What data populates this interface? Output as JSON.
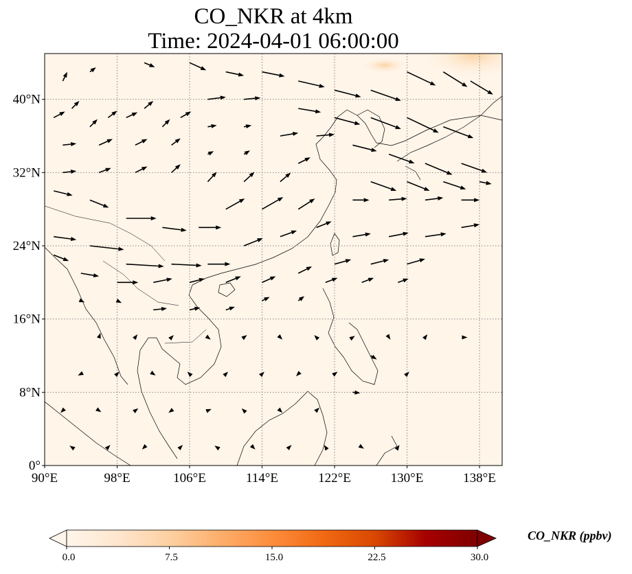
{
  "title_line1": "CO_NKR at 4km",
  "title_line2": "Time: 2024-04-01 06:00:00",
  "map": {
    "lon_range": [
      90,
      140.5
    ],
    "lat_range": [
      0,
      45
    ],
    "lon_ticks": [
      {
        "value": 90,
        "label": "90°E"
      },
      {
        "value": 98,
        "label": "98°E"
      },
      {
        "value": 106,
        "label": "106°E"
      },
      {
        "value": 114,
        "label": "114°E"
      },
      {
        "value": 122,
        "label": "122°E"
      },
      {
        "value": 130,
        "label": "130°E"
      },
      {
        "value": 138,
        "label": "138°E"
      }
    ],
    "lat_ticks": [
      {
        "value": 0,
        "label": "0°"
      },
      {
        "value": 8,
        "label": "8°N"
      },
      {
        "value": 16,
        "label": "16°N"
      },
      {
        "value": 24,
        "label": "24°N"
      },
      {
        "value": 32,
        "label": "32°N"
      },
      {
        "value": 40,
        "label": "40°N"
      }
    ],
    "gridlines": "dotted",
    "field_background": "#fff5e9",
    "field_high_color": "#fdd9ac",
    "coastline_color": "#000000",
    "wind_vectors": [
      {
        "lon": 91,
        "lat": 38,
        "u": 1.5,
        "v": 0.8
      },
      {
        "lon": 93,
        "lat": 39,
        "u": 1.0,
        "v": 1.0
      },
      {
        "lon": 95,
        "lat": 37,
        "u": 1.0,
        "v": 1.0
      },
      {
        "lon": 97,
        "lat": 38,
        "u": 1.2,
        "v": 0.9
      },
      {
        "lon": 99,
        "lat": 38,
        "u": 1.5,
        "v": 0.7
      },
      {
        "lon": 101,
        "lat": 39,
        "u": 1.2,
        "v": 1.0
      },
      {
        "lon": 103,
        "lat": 37,
        "u": 1.0,
        "v": 1.0
      },
      {
        "lon": 105,
        "lat": 38,
        "u": 1.4,
        "v": 0.8
      },
      {
        "lon": 92,
        "lat": 35,
        "u": 1.8,
        "v": 0.2
      },
      {
        "lon": 96,
        "lat": 35,
        "u": 1.8,
        "v": 0.8
      },
      {
        "lon": 100,
        "lat": 35,
        "u": 1.6,
        "v": 0.8
      },
      {
        "lon": 104,
        "lat": 35,
        "u": 1.2,
        "v": 0.9
      },
      {
        "lon": 92,
        "lat": 32,
        "u": 1.8,
        "v": 0.2
      },
      {
        "lon": 96,
        "lat": 32,
        "u": 1.6,
        "v": 0.6
      },
      {
        "lon": 100,
        "lat": 32,
        "u": 1.6,
        "v": 0.8
      },
      {
        "lon": 104,
        "lat": 32,
        "u": 1.2,
        "v": 1.1
      },
      {
        "lon": 108,
        "lat": 31,
        "u": 1.2,
        "v": 1.3
      },
      {
        "lon": 112,
        "lat": 31,
        "u": 1.4,
        "v": 1.3
      },
      {
        "lon": 116,
        "lat": 31,
        "u": 1.4,
        "v": 1.2
      },
      {
        "lon": 91,
        "lat": 30,
        "u": 2.5,
        "v": -0.6
      },
      {
        "lon": 95,
        "lat": 29,
        "u": 2.5,
        "v": -1.0
      },
      {
        "lon": 99,
        "lat": 27,
        "u": 4.0,
        "v": 0.0
      },
      {
        "lon": 103,
        "lat": 26,
        "u": 3.2,
        "v": -0.4
      },
      {
        "lon": 107,
        "lat": 26,
        "u": 3.0,
        "v": 0.0
      },
      {
        "lon": 110,
        "lat": 28,
        "u": 2.5,
        "v": 1.4
      },
      {
        "lon": 114,
        "lat": 28,
        "u": 2.8,
        "v": 1.6
      },
      {
        "lon": 118,
        "lat": 28,
        "u": 2.2,
        "v": 1.4
      },
      {
        "lon": 91,
        "lat": 25,
        "u": 3.0,
        "v": -0.4
      },
      {
        "lon": 95,
        "lat": 24,
        "u": 4.5,
        "v": -0.5
      },
      {
        "lon": 99,
        "lat": 22,
        "u": 5.0,
        "v": -0.3
      },
      {
        "lon": 104,
        "lat": 22,
        "u": 4.0,
        "v": -0.2
      },
      {
        "lon": 108,
        "lat": 22,
        "u": 3.0,
        "v": 0.0
      },
      {
        "lon": 112,
        "lat": 24,
        "u": 2.5,
        "v": 1.0
      },
      {
        "lon": 116,
        "lat": 25,
        "u": 2.2,
        "v": 0.8
      },
      {
        "lon": 120,
        "lat": 26,
        "u": 2.0,
        "v": 0.8
      },
      {
        "lon": 91,
        "lat": 23,
        "u": 2.0,
        "v": -0.8
      },
      {
        "lon": 94,
        "lat": 21,
        "u": 2.4,
        "v": -0.4
      },
      {
        "lon": 98,
        "lat": 20,
        "u": 2.8,
        "v": 0.0
      },
      {
        "lon": 102,
        "lat": 20,
        "u": 2.5,
        "v": 0.5
      },
      {
        "lon": 106,
        "lat": 20,
        "u": 2.0,
        "v": 0.5
      },
      {
        "lon": 110,
        "lat": 20,
        "u": 2.0,
        "v": 0.8
      },
      {
        "lon": 114,
        "lat": 20,
        "u": 1.8,
        "v": 0.8
      },
      {
        "lon": 118,
        "lat": 21,
        "u": 1.8,
        "v": 0.9
      },
      {
        "lon": 124,
        "lat": 29,
        "u": 2.2,
        "v": 0.0
      },
      {
        "lon": 128,
        "lat": 29,
        "u": 2.4,
        "v": 0.2
      },
      {
        "lon": 132,
        "lat": 29,
        "u": 2.4,
        "v": 0.3
      },
      {
        "lon": 136,
        "lat": 29,
        "u": 2.4,
        "v": 0.0
      },
      {
        "lon": 124,
        "lat": 25,
        "u": 2.4,
        "v": 0.4
      },
      {
        "lon": 128,
        "lat": 25,
        "u": 2.6,
        "v": 0.5
      },
      {
        "lon": 132,
        "lat": 25,
        "u": 2.8,
        "v": 0.4
      },
      {
        "lon": 136,
        "lat": 26,
        "u": 2.4,
        "v": 0.4
      },
      {
        "lon": 122,
        "lat": 22,
        "u": 2.2,
        "v": 0.6
      },
      {
        "lon": 126,
        "lat": 22,
        "u": 2.4,
        "v": 0.6
      },
      {
        "lon": 130,
        "lat": 22,
        "u": 2.4,
        "v": 0.7
      },
      {
        "lon": 121,
        "lat": 20,
        "u": 1.6,
        "v": 0.6
      },
      {
        "lon": 125,
        "lat": 20,
        "u": 1.6,
        "v": 0.6
      },
      {
        "lon": 129,
        "lat": 20,
        "u": 1.4,
        "v": 0.5
      },
      {
        "lon": 92,
        "lat": 42,
        "u": 0.6,
        "v": 1.2
      },
      {
        "lon": 95,
        "lat": 43,
        "u": 0.8,
        "v": 0.6
      },
      {
        "lon": 101,
        "lat": 44,
        "u": 1.4,
        "v": -0.6
      },
      {
        "lon": 106,
        "lat": 44,
        "u": 2.2,
        "v": -1.0
      },
      {
        "lon": 110,
        "lat": 43,
        "u": 2.4,
        "v": -0.5
      },
      {
        "lon": 114,
        "lat": 43,
        "u": 3.0,
        "v": -0.6
      },
      {
        "lon": 118,
        "lat": 42,
        "u": 3.5,
        "v": -0.8
      },
      {
        "lon": 122,
        "lat": 41,
        "u": 3.5,
        "v": -0.9
      },
      {
        "lon": 126,
        "lat": 41,
        "u": 4.0,
        "v": -1.4
      },
      {
        "lon": 130,
        "lat": 43,
        "u": 3.8,
        "v": -1.8
      },
      {
        "lon": 134,
        "lat": 43,
        "u": 3.2,
        "v": -2.0
      },
      {
        "lon": 137,
        "lat": 42,
        "u": 3.0,
        "v": -1.8
      },
      {
        "lon": 118,
        "lat": 39,
        "u": 3.0,
        "v": -0.5
      },
      {
        "lon": 122,
        "lat": 38,
        "u": 3.4,
        "v": -0.9
      },
      {
        "lon": 126,
        "lat": 38,
        "u": 4.0,
        "v": -1.5
      },
      {
        "lon": 130,
        "lat": 38,
        "u": 4.2,
        "v": -2.0
      },
      {
        "lon": 134,
        "lat": 37,
        "u": 4.0,
        "v": -1.5
      },
      {
        "lon": 108,
        "lat": 40,
        "u": 2.4,
        "v": 0.3
      },
      {
        "lon": 112,
        "lat": 40,
        "u": 2.2,
        "v": 0.2
      },
      {
        "lon": 116,
        "lat": 36,
        "u": 2.4,
        "v": 0.4
      },
      {
        "lon": 120,
        "lat": 36,
        "u": 2.4,
        "v": 0.2
      },
      {
        "lon": 124,
        "lat": 35,
        "u": 3.2,
        "v": -0.8
      },
      {
        "lon": 128,
        "lat": 34,
        "u": 3.4,
        "v": -1.2
      },
      {
        "lon": 132,
        "lat": 33,
        "u": 3.6,
        "v": -1.5
      },
      {
        "lon": 136,
        "lat": 33,
        "u": 3.4,
        "v": -1.2
      },
      {
        "lon": 126,
        "lat": 31,
        "u": 3.4,
        "v": -1.2
      },
      {
        "lon": 130,
        "lat": 31,
        "u": 3.0,
        "v": -1.2
      },
      {
        "lon": 134,
        "lat": 31,
        "u": 3.0,
        "v": -1.0
      },
      {
        "lon": 138,
        "lat": 31,
        "u": 1.6,
        "v": -0.3
      },
      {
        "lon": 108,
        "lat": 37,
        "u": 1.2,
        "v": 0.2
      },
      {
        "lon": 112,
        "lat": 37,
        "u": 1.0,
        "v": 0.2
      },
      {
        "lon": 108,
        "lat": 34,
        "u": 0.8,
        "v": 0.4
      },
      {
        "lon": 112,
        "lat": 34,
        "u": 0.8,
        "v": 0.5
      },
      {
        "lon": 118,
        "lat": 33,
        "u": 1.6,
        "v": 0.8
      },
      {
        "lon": 94,
        "lat": 18,
        "u": 0.5,
        "v": -0.2
      },
      {
        "lon": 98,
        "lat": 18,
        "u": 0.6,
        "v": -0.3
      },
      {
        "lon": 102,
        "lat": 17,
        "u": 1.8,
        "v": 0.2
      },
      {
        "lon": 106,
        "lat": 17,
        "u": 1.4,
        "v": 0.3
      },
      {
        "lon": 110,
        "lat": 17,
        "u": 1.2,
        "v": 0.4
      },
      {
        "lon": 114,
        "lat": 18,
        "u": 1.0,
        "v": 0.5
      },
      {
        "lon": 118,
        "lat": 18,
        "u": 0.8,
        "v": 0.6
      },
      {
        "lon": 96,
        "lat": 14,
        "u": 0.2,
        "v": 0.6
      },
      {
        "lon": 100,
        "lat": 14,
        "u": 0.3,
        "v": 0.4
      },
      {
        "lon": 104,
        "lat": 14,
        "u": 0.3,
        "v": 0.3
      },
      {
        "lon": 108,
        "lat": 14,
        "u": 0.4,
        "v": -0.3
      },
      {
        "lon": 112,
        "lat": 14,
        "u": 0.4,
        "v": 0.3
      },
      {
        "lon": 116,
        "lat": 14,
        "u": 0.3,
        "v": -0.3
      },
      {
        "lon": 120,
        "lat": 14,
        "u": -0.3,
        "v": 0.3
      },
      {
        "lon": 124,
        "lat": 14,
        "u": 0.3,
        "v": 0.2
      },
      {
        "lon": 128,
        "lat": 14,
        "u": 0.2,
        "v": -0.3
      },
      {
        "lon": 132,
        "lat": 14,
        "u": 0.3,
        "v": 0.4
      },
      {
        "lon": 136,
        "lat": 14,
        "u": 0.8,
        "v": 0.0
      },
      {
        "lon": 94,
        "lat": 10,
        "u": -0.4,
        "v": -0.2
      },
      {
        "lon": 98,
        "lat": 10,
        "u": 0.3,
        "v": 0.3
      },
      {
        "lon": 102,
        "lat": 10,
        "u": 0.3,
        "v": -0.2
      },
      {
        "lon": 106,
        "lat": 10,
        "u": -0.3,
        "v": 0.3
      },
      {
        "lon": 110,
        "lat": 10,
        "u": 0.3,
        "v": 0.3
      },
      {
        "lon": 114,
        "lat": 10,
        "u": 0.3,
        "v": 0.3
      },
      {
        "lon": 118,
        "lat": 10,
        "u": -0.3,
        "v": -0.3
      },
      {
        "lon": 122,
        "lat": 10,
        "u": 0.4,
        "v": 0.3
      },
      {
        "lon": 126,
        "lat": 12,
        "u": 0.8,
        "v": -0.5
      },
      {
        "lon": 130,
        "lat": 10,
        "u": 0.3,
        "v": 0.3
      },
      {
        "lon": 92,
        "lat": 6,
        "u": -0.3,
        "v": -0.3
      },
      {
        "lon": 96,
        "lat": 6,
        "u": 0.3,
        "v": -0.2
      },
      {
        "lon": 100,
        "lat": 6,
        "u": 0.4,
        "v": 0.3
      },
      {
        "lon": 104,
        "lat": 6,
        "u": -0.4,
        "v": -0.3
      },
      {
        "lon": 108,
        "lat": 6,
        "u": 0.5,
        "v": 0.2
      },
      {
        "lon": 112,
        "lat": 6,
        "u": -0.3,
        "v": 0.3
      },
      {
        "lon": 116,
        "lat": 6,
        "u": 0.3,
        "v": -0.3
      },
      {
        "lon": 120,
        "lat": 6,
        "u": 0.4,
        "v": 0.4
      },
      {
        "lon": 124,
        "lat": 8,
        "u": 1.0,
        "v": -0.1
      },
      {
        "lon": 93,
        "lat": 2,
        "u": -0.3,
        "v": 0.2
      },
      {
        "lon": 97,
        "lat": 2,
        "u": 0.3,
        "v": 0.3
      },
      {
        "lon": 101,
        "lat": 2,
        "u": -0.3,
        "v": -0.3
      },
      {
        "lon": 105,
        "lat": 2,
        "u": 0.3,
        "v": 0.3
      },
      {
        "lon": 109,
        "lat": 2,
        "u": -0.3,
        "v": 0.2
      },
      {
        "lon": 113,
        "lat": 2,
        "u": 0.3,
        "v": -0.3
      },
      {
        "lon": 117,
        "lat": 2,
        "u": 0.3,
        "v": 0.3
      },
      {
        "lon": 121,
        "lat": 2,
        "u": -0.2,
        "v": 0.3
      },
      {
        "lon": 125,
        "lat": 2,
        "u": 0.3,
        "v": -0.2
      },
      {
        "lon": 129,
        "lat": 2,
        "u": 0.2,
        "v": 0.3
      }
    ]
  },
  "colorbar": {
    "label": "CO_NKR (ppbv)",
    "min": 0.0,
    "max": 30.0,
    "ticks": [
      "0.0",
      "7.5",
      "15.0",
      "22.5",
      "30.0"
    ],
    "tick_values": [
      0,
      7.5,
      15,
      22.5,
      30
    ],
    "colors": [
      "#fff5eb",
      "#fee6ce",
      "#fdd0a2",
      "#fdae6b",
      "#fd8d3c",
      "#f16913",
      "#d94801",
      "#a60000",
      "#7f0000"
    ],
    "extend": "both"
  }
}
